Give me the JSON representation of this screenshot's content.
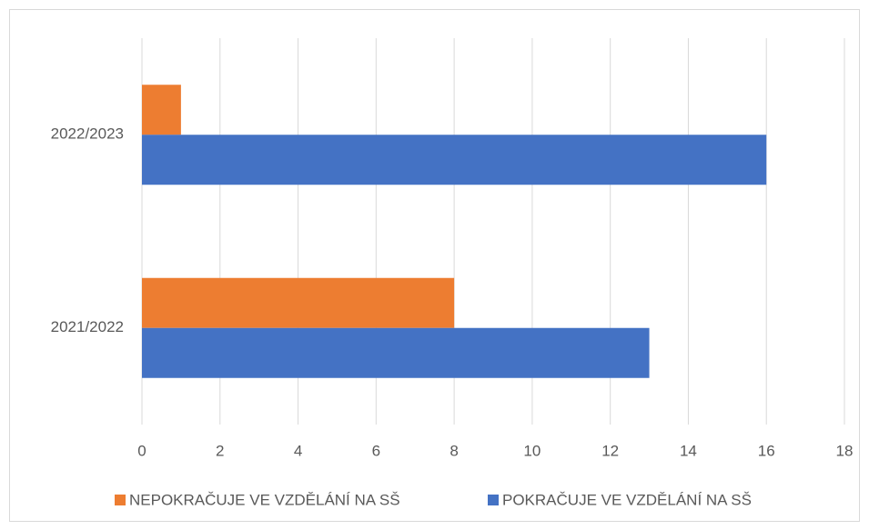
{
  "chart_data": {
    "type": "bar",
    "orientation": "horizontal",
    "categories": [
      "2021/2022",
      "2022/2023"
    ],
    "series": [
      {
        "name": "NEPOKRAČUJE VE VZDĚLÁNÍ NA SŠ",
        "color": "#ed7d31",
        "values": [
          8,
          1
        ]
      },
      {
        "name": "POKRAČUJE VE VZDĚLÁNÍ NA SŠ",
        "color": "#4472c4",
        "values": [
          13,
          16
        ]
      }
    ],
    "xlim": [
      0,
      18
    ],
    "xticks": [
      0,
      2,
      4,
      6,
      8,
      10,
      12,
      14,
      16,
      18
    ],
    "grid": true,
    "legend": "bottom"
  }
}
